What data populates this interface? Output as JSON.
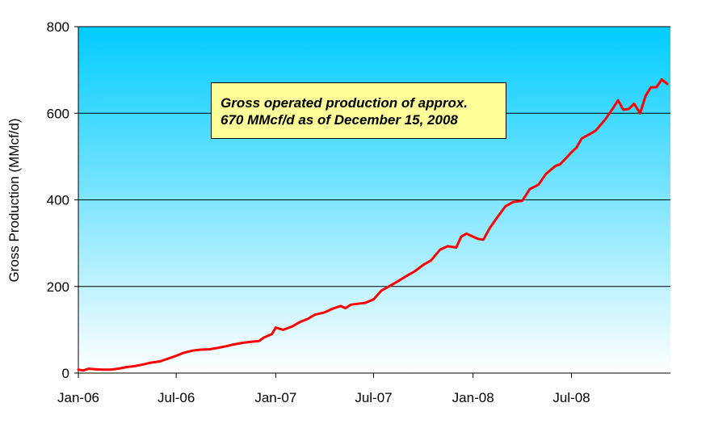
{
  "colors": {
    "plot_top": "#00ccff",
    "plot_bottom": "#ffffff",
    "line": "#ff0000",
    "grid": "#000000",
    "annotation_bg": "#ffff99"
  },
  "chart_data": {
    "type": "line",
    "title": "",
    "xlabel": "",
    "ylabel": "Gross Production (MMcf/d)",
    "ylim": [
      0,
      800
    ],
    "yticks": [
      "0",
      "200",
      "400",
      "600",
      "800"
    ],
    "xlim": [
      "2006-01-01",
      "2008-12-31"
    ],
    "xticks": [
      {
        "date": "2006-01-01",
        "label": "Jan-06"
      },
      {
        "date": "2006-07-01",
        "label": "Jul-06"
      },
      {
        "date": "2007-01-01",
        "label": "Jan-07"
      },
      {
        "date": "2007-07-01",
        "label": "Jul-07"
      },
      {
        "date": "2008-01-01",
        "label": "Jan-08"
      },
      {
        "date": "2008-07-01",
        "label": "Jul-08"
      }
    ],
    "grid": "horizontal",
    "annotation": [
      "Gross operated production of approx.",
      "670 MMcf/d as of December 15, 2008"
    ],
    "series": [
      {
        "name": "",
        "points": [
          [
            "2006-01-01",
            8
          ],
          [
            "2006-01-10",
            6
          ],
          [
            "2006-01-20",
            10
          ],
          [
            "2006-02-01",
            9
          ],
          [
            "2006-02-15",
            8
          ],
          [
            "2006-03-01",
            8
          ],
          [
            "2006-03-15",
            10
          ],
          [
            "2006-04-01",
            14
          ],
          [
            "2006-04-15",
            16
          ],
          [
            "2006-05-01",
            20
          ],
          [
            "2006-05-15",
            24
          ],
          [
            "2006-06-01",
            27
          ],
          [
            "2006-06-15",
            33
          ],
          [
            "2006-07-01",
            40
          ],
          [
            "2006-07-15",
            47
          ],
          [
            "2006-08-01",
            52
          ],
          [
            "2006-08-15",
            54
          ],
          [
            "2006-09-01",
            55
          ],
          [
            "2006-09-15",
            58
          ],
          [
            "2006-10-01",
            62
          ],
          [
            "2006-10-15",
            66
          ],
          [
            "2006-11-01",
            70
          ],
          [
            "2006-11-15",
            72
          ],
          [
            "2006-12-01",
            74
          ],
          [
            "2006-12-10",
            82
          ],
          [
            "2006-12-25",
            90
          ],
          [
            "2007-01-01",
            105
          ],
          [
            "2007-01-15",
            100
          ],
          [
            "2007-02-01",
            108
          ],
          [
            "2007-02-15",
            118
          ],
          [
            "2007-03-01",
            125
          ],
          [
            "2007-03-15",
            135
          ],
          [
            "2007-04-01",
            140
          ],
          [
            "2007-04-15",
            148
          ],
          [
            "2007-05-01",
            155
          ],
          [
            "2007-05-10",
            150
          ],
          [
            "2007-05-20",
            158
          ],
          [
            "2007-06-01",
            160
          ],
          [
            "2007-06-15",
            162
          ],
          [
            "2007-07-01",
            170
          ],
          [
            "2007-07-15",
            190
          ],
          [
            "2007-08-01",
            202
          ],
          [
            "2007-08-15",
            212
          ],
          [
            "2007-09-01",
            225
          ],
          [
            "2007-09-15",
            235
          ],
          [
            "2007-10-01",
            250
          ],
          [
            "2007-10-15",
            260
          ],
          [
            "2007-11-01",
            285
          ],
          [
            "2007-11-15",
            293
          ],
          [
            "2007-12-01",
            290
          ],
          [
            "2007-12-10",
            315
          ],
          [
            "2007-12-20",
            322
          ],
          [
            "2008-01-01",
            315
          ],
          [
            "2008-01-10",
            310
          ],
          [
            "2008-01-20",
            308
          ],
          [
            "2008-02-01",
            335
          ],
          [
            "2008-02-15",
            360
          ],
          [
            "2008-03-01",
            385
          ],
          [
            "2008-03-15",
            395
          ],
          [
            "2008-04-01",
            398
          ],
          [
            "2008-04-15",
            425
          ],
          [
            "2008-05-01",
            435
          ],
          [
            "2008-05-15",
            460
          ],
          [
            "2008-06-01",
            478
          ],
          [
            "2008-06-10",
            482
          ],
          [
            "2008-06-20",
            495
          ],
          [
            "2008-07-01",
            510
          ],
          [
            "2008-07-10",
            520
          ],
          [
            "2008-07-20",
            542
          ],
          [
            "2008-08-01",
            550
          ],
          [
            "2008-08-15",
            560
          ],
          [
            "2008-09-01",
            585
          ],
          [
            "2008-09-15",
            610
          ],
          [
            "2008-09-25",
            630
          ],
          [
            "2008-10-05",
            608
          ],
          [
            "2008-10-15",
            610
          ],
          [
            "2008-10-25",
            622
          ],
          [
            "2008-11-05",
            600
          ],
          [
            "2008-11-15",
            640
          ],
          [
            "2008-11-25",
            660
          ],
          [
            "2008-12-05",
            660
          ],
          [
            "2008-12-15",
            678
          ],
          [
            "2008-12-25",
            668
          ]
        ]
      }
    ]
  }
}
